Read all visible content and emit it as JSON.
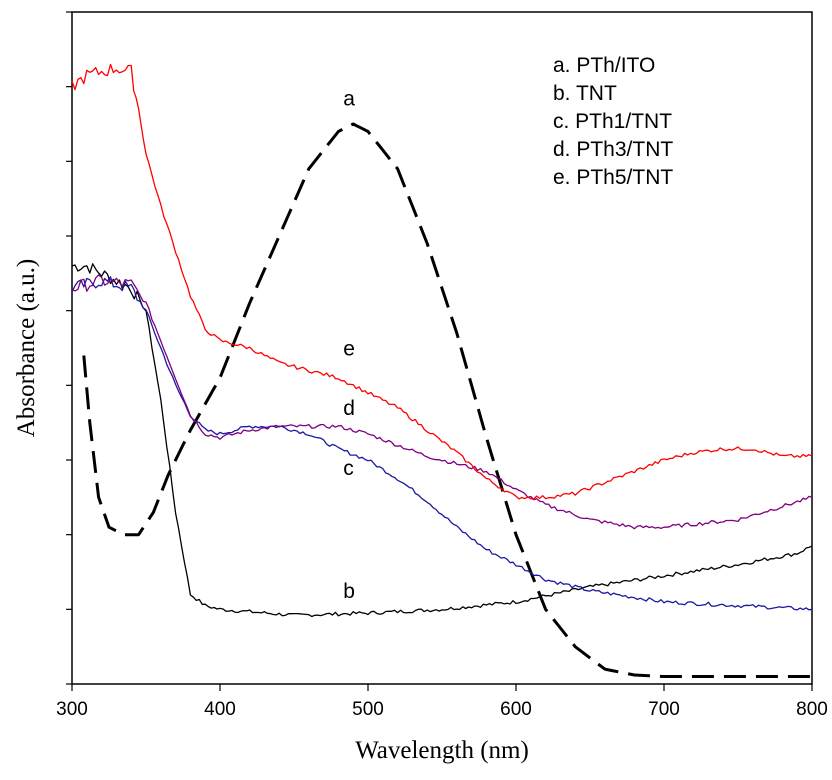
{
  "chart_data": {
    "type": "line",
    "title": "",
    "xlabel": "Wavelength (nm)",
    "ylabel": "Absorbance (a.u.)",
    "xlim": [
      300,
      800
    ],
    "ylim": [
      0,
      9
    ],
    "x_ticks": [
      300,
      400,
      500,
      600,
      700,
      800
    ],
    "x_tick_labels": [
      "300",
      "400",
      "500",
      "600",
      "700",
      "800"
    ],
    "y_ticks": [
      0,
      1,
      2,
      3,
      4,
      5,
      6,
      7,
      8,
      9
    ],
    "y_tick_labels_shown": false,
    "grid": false,
    "legend_position": "top-right",
    "legend": [
      "a. PTh/ITO",
      "b. TNT",
      "c. PTh1/TNT",
      "d. PTh3/TNT",
      "e. PTh5/TNT"
    ],
    "series": [
      {
        "name": "a",
        "color": "#000000",
        "dashed": true,
        "x": [
          308,
          312,
          318,
          325,
          335,
          345,
          355,
          365,
          380,
          400,
          420,
          440,
          460,
          480,
          490,
          500,
          520,
          540,
          560,
          580,
          600,
          620,
          640,
          660,
          680,
          700,
          750,
          800
        ],
        "values": [
          4.4,
          3.5,
          2.5,
          2.1,
          2.0,
          2.0,
          2.3,
          2.8,
          3.4,
          4.1,
          5.1,
          6.0,
          6.9,
          7.4,
          7.5,
          7.4,
          6.9,
          5.9,
          4.7,
          3.3,
          2.0,
          1.0,
          0.5,
          0.2,
          0.12,
          0.1,
          0.1,
          0.1
        ]
      },
      {
        "name": "b",
        "color": "#000000",
        "dashed": false,
        "x": [
          300,
          310,
          320,
          330,
          340,
          350,
          360,
          370,
          380,
          390,
          400,
          450,
          500,
          550,
          600,
          650,
          700,
          750,
          790,
          800
        ],
        "values": [
          5.6,
          5.6,
          5.5,
          5.4,
          5.3,
          5.0,
          3.8,
          2.3,
          1.2,
          1.05,
          1.0,
          0.92,
          0.95,
          1.0,
          1.1,
          1.3,
          1.45,
          1.6,
          1.75,
          1.85
        ]
      },
      {
        "name": "c",
        "color": "#1a1aa0",
        "dashed": false,
        "x": [
          300,
          320,
          340,
          350,
          360,
          370,
          380,
          390,
          400,
          420,
          440,
          460,
          480,
          500,
          520,
          540,
          560,
          580,
          600,
          620,
          650,
          700,
          750,
          800
        ],
        "values": [
          5.3,
          5.4,
          5.3,
          5.0,
          4.5,
          4.0,
          3.6,
          3.4,
          3.35,
          3.45,
          3.45,
          3.35,
          3.15,
          3.0,
          2.75,
          2.45,
          2.1,
          1.8,
          1.6,
          1.4,
          1.25,
          1.1,
          1.05,
          1.0
        ]
      },
      {
        "name": "d",
        "color": "#800080",
        "dashed": false,
        "x": [
          300,
          320,
          340,
          350,
          360,
          370,
          380,
          390,
          400,
          420,
          440,
          460,
          480,
          500,
          520,
          540,
          560,
          580,
          600,
          620,
          650,
          680,
          700,
          750,
          800
        ],
        "values": [
          5.3,
          5.4,
          5.35,
          5.1,
          4.6,
          4.1,
          3.6,
          3.35,
          3.3,
          3.4,
          3.45,
          3.45,
          3.45,
          3.35,
          3.2,
          3.05,
          2.95,
          2.85,
          2.6,
          2.4,
          2.2,
          2.1,
          2.1,
          2.2,
          2.5
        ]
      },
      {
        "name": "e",
        "color": "#ff0000",
        "dashed": false,
        "x": [
          300,
          310,
          320,
          330,
          340,
          345,
          350,
          360,
          370,
          380,
          390,
          400,
          420,
          440,
          460,
          480,
          500,
          520,
          540,
          560,
          580,
          600,
          620,
          640,
          660,
          680,
          700,
          720,
          740,
          760,
          780,
          800
        ],
        "values": [
          8.0,
          8.15,
          8.2,
          8.25,
          8.2,
          7.7,
          7.1,
          6.4,
          5.8,
          5.2,
          4.75,
          4.6,
          4.5,
          4.3,
          4.2,
          4.1,
          3.9,
          3.7,
          3.4,
          3.1,
          2.75,
          2.5,
          2.5,
          2.55,
          2.7,
          2.85,
          3.0,
          3.1,
          3.15,
          3.15,
          3.05,
          3.05
        ]
      }
    ],
    "curve_labels": [
      {
        "text": "a",
        "x": 490,
        "y": 7.75
      },
      {
        "text": "b",
        "x": 490,
        "y": 1.15
      },
      {
        "text": "c",
        "x": 490,
        "y": 2.8
      },
      {
        "text": "d",
        "x": 490,
        "y": 3.6
      },
      {
        "text": "e",
        "x": 490,
        "y": 4.4
      }
    ]
  }
}
